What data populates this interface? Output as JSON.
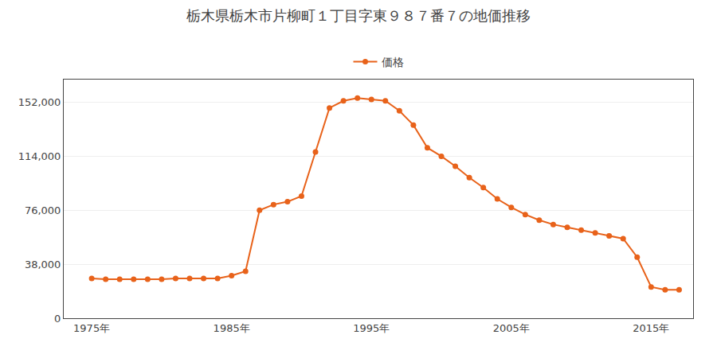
{
  "chart_data": {
    "type": "line",
    "title": "栃木県栃木市片柳町１丁目字東９８７番７の地価推移",
    "x": [
      1975,
      1976,
      1977,
      1978,
      1979,
      1980,
      1981,
      1982,
      1983,
      1984,
      1985,
      1986,
      1987,
      1988,
      1989,
      1990,
      1991,
      1992,
      1993,
      1994,
      1995,
      1996,
      1997,
      1998,
      1999,
      2000,
      2001,
      2002,
      2003,
      2004,
      2005,
      2006,
      2007,
      2008,
      2009,
      2010,
      2011,
      2012,
      2013,
      2014,
      2015,
      2016,
      2017
    ],
    "series": [
      {
        "name": "価格",
        "color": "#E8621A",
        "marker": "circle",
        "values": [
          28000,
          27500,
          27500,
          27500,
          27500,
          27500,
          28000,
          28000,
          28000,
          28000,
          30000,
          33000,
          76000,
          80000,
          82000,
          86000,
          117000,
          148000,
          153000,
          155000,
          154000,
          153000,
          146000,
          136000,
          120000,
          114000,
          107000,
          99000,
          92000,
          84000,
          78000,
          73000,
          69000,
          66000,
          64000,
          62000,
          60000,
          58000,
          56000,
          43000,
          22000,
          20000,
          20000
        ]
      }
    ],
    "xlim": [
      1973,
      2018
    ],
    "ylim": [
      0,
      168000
    ],
    "xticks": [
      {
        "value": 1975,
        "label": "1975年"
      },
      {
        "value": 1985,
        "label": "1985年"
      },
      {
        "value": 1995,
        "label": "1995年"
      },
      {
        "value": 2005,
        "label": "2005年"
      },
      {
        "value": 2015,
        "label": "2015年"
      }
    ],
    "yticks": [
      0,
      {
        "value": 38000,
        "label": "38,000"
      },
      {
        "value": 76000,
        "label": "76,000"
      },
      {
        "value": 114000,
        "label": "114,000"
      },
      {
        "value": 152000,
        "label": "152,000"
      }
    ],
    "grid": "y",
    "legend": "upper center"
  }
}
